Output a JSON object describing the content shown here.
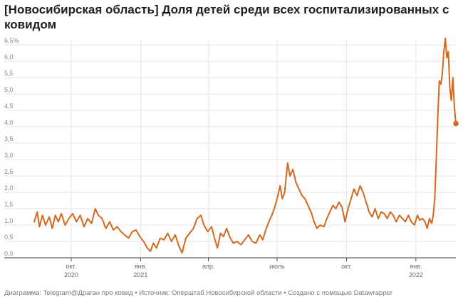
{
  "title": "[Новосибирская область] Доля детей среди всех госпитализированных с ковидом",
  "footer": "Диаграмма: Telegram@Драган про ковид • Источник: Оперштаб Новосибирской области • Создано с помощью Datawrapper",
  "colors": {
    "line": "#d2691e",
    "grid": "#e6e6e6",
    "axis": "#444444"
  },
  "chart_data": {
    "type": "line",
    "x_range": [
      "2020-08-13",
      "2022-02-23"
    ],
    "ylim": [
      0,
      6.5
    ],
    "y_ticks": [
      "0,0",
      "0,5",
      "1,0",
      "1,5",
      "2,0",
      "2,5",
      "3,0",
      "3,5",
      "4,0",
      "4,5",
      "5,0",
      "5,5",
      "6,0",
      "6,5%"
    ],
    "x_ticks": [
      {
        "date": "2020-10-01",
        "label": "окт.",
        "year": "2020"
      },
      {
        "date": "2021-01-01",
        "label": "янв.",
        "year": "2021"
      },
      {
        "date": "2021-04-01",
        "label": "апр.",
        "year": ""
      },
      {
        "date": "2021-07-01",
        "label": "июль",
        "year": ""
      },
      {
        "date": "2021-10-01",
        "label": "окт.",
        "year": ""
      },
      {
        "date": "2022-01-01",
        "label": "янв.",
        "year": "2022"
      }
    ],
    "end_marker": true,
    "points": [
      [
        "2020-08-13",
        1.1
      ],
      [
        "2020-08-17",
        1.4
      ],
      [
        "2020-08-20",
        0.95
      ],
      [
        "2020-08-24",
        1.3
      ],
      [
        "2020-08-28",
        1.0
      ],
      [
        "2020-09-02",
        1.25
      ],
      [
        "2020-09-06",
        0.9
      ],
      [
        "2020-09-10",
        1.3
      ],
      [
        "2020-09-14",
        1.1
      ],
      [
        "2020-09-18",
        1.35
      ],
      [
        "2020-09-23",
        1.0
      ],
      [
        "2020-09-28",
        1.2
      ],
      [
        "2020-10-03",
        1.35
      ],
      [
        "2020-10-08",
        1.1
      ],
      [
        "2020-10-13",
        1.3
      ],
      [
        "2020-10-18",
        0.95
      ],
      [
        "2020-10-23",
        1.2
      ],
      [
        "2020-10-28",
        1.05
      ],
      [
        "2020-11-02",
        1.5
      ],
      [
        "2020-11-06",
        1.3
      ],
      [
        "2020-11-11",
        1.2
      ],
      [
        "2020-11-16",
        0.9
      ],
      [
        "2020-11-21",
        1.1
      ],
      [
        "2020-11-26",
        0.85
      ],
      [
        "2020-12-01",
        0.95
      ],
      [
        "2020-12-06",
        0.8
      ],
      [
        "2020-12-11",
        0.7
      ],
      [
        "2020-12-16",
        0.6
      ],
      [
        "2020-12-21",
        0.8
      ],
      [
        "2020-12-26",
        0.85
      ],
      [
        "2020-12-31",
        0.65
      ],
      [
        "2021-01-05",
        0.5
      ],
      [
        "2021-01-10",
        0.3
      ],
      [
        "2021-01-14",
        0.2
      ],
      [
        "2021-01-18",
        0.45
      ],
      [
        "2021-01-22",
        0.3
      ],
      [
        "2021-01-27",
        0.6
      ],
      [
        "2021-02-01",
        0.55
      ],
      [
        "2021-02-06",
        0.75
      ],
      [
        "2021-02-11",
        0.5
      ],
      [
        "2021-02-16",
        0.7
      ],
      [
        "2021-02-21",
        0.35
      ],
      [
        "2021-02-25",
        0.15
      ],
      [
        "2021-03-02",
        0.6
      ],
      [
        "2021-03-07",
        0.75
      ],
      [
        "2021-03-12",
        0.9
      ],
      [
        "2021-03-17",
        1.2
      ],
      [
        "2021-03-22",
        1.3
      ],
      [
        "2021-03-26",
        1.0
      ],
      [
        "2021-03-31",
        0.8
      ],
      [
        "2021-04-05",
        0.95
      ],
      [
        "2021-04-09",
        0.6
      ],
      [
        "2021-04-13",
        0.3
      ],
      [
        "2021-04-17",
        0.75
      ],
      [
        "2021-04-21",
        0.65
      ],
      [
        "2021-04-25",
        0.9
      ],
      [
        "2021-04-30",
        0.6
      ],
      [
        "2021-05-04",
        0.45
      ],
      [
        "2021-05-09",
        0.5
      ],
      [
        "2021-05-14",
        0.4
      ],
      [
        "2021-05-19",
        0.55
      ],
      [
        "2021-05-24",
        0.7
      ],
      [
        "2021-05-29",
        0.5
      ],
      [
        "2021-06-03",
        0.45
      ],
      [
        "2021-06-08",
        0.7
      ],
      [
        "2021-06-12",
        0.55
      ],
      [
        "2021-06-16",
        0.85
      ],
      [
        "2021-06-20",
        1.1
      ],
      [
        "2021-06-24",
        1.3
      ],
      [
        "2021-06-28",
        1.55
      ],
      [
        "2021-07-02",
        1.9
      ],
      [
        "2021-07-05",
        2.2
      ],
      [
        "2021-07-08",
        1.8
      ],
      [
        "2021-07-11",
        2.0
      ],
      [
        "2021-07-15",
        2.9
      ],
      [
        "2021-07-18",
        2.5
      ],
      [
        "2021-07-22",
        2.7
      ],
      [
        "2021-07-26",
        2.3
      ],
      [
        "2021-07-30",
        2.1
      ],
      [
        "2021-08-03",
        1.9
      ],
      [
        "2021-08-07",
        1.8
      ],
      [
        "2021-08-11",
        1.6
      ],
      [
        "2021-08-15",
        1.4
      ],
      [
        "2021-08-19",
        1.1
      ],
      [
        "2021-08-23",
        0.9
      ],
      [
        "2021-08-27",
        1.0
      ],
      [
        "2021-09-01",
        0.95
      ],
      [
        "2021-09-05",
        1.2
      ],
      [
        "2021-09-09",
        1.4
      ],
      [
        "2021-09-13",
        1.6
      ],
      [
        "2021-09-17",
        1.5
      ],
      [
        "2021-09-21",
        1.7
      ],
      [
        "2021-09-25",
        1.55
      ],
      [
        "2021-09-29",
        1.1
      ],
      [
        "2021-10-03",
        1.5
      ],
      [
        "2021-10-07",
        1.8
      ],
      [
        "2021-10-11",
        2.1
      ],
      [
        "2021-10-15",
        1.9
      ],
      [
        "2021-10-19",
        2.2
      ],
      [
        "2021-10-23",
        2.0
      ],
      [
        "2021-10-27",
        1.7
      ],
      [
        "2021-10-31",
        1.4
      ],
      [
        "2021-11-04",
        1.25
      ],
      [
        "2021-11-08",
        1.5
      ],
      [
        "2021-11-12",
        1.2
      ],
      [
        "2021-11-16",
        1.4
      ],
      [
        "2021-11-20",
        1.35
      ],
      [
        "2021-11-24",
        1.2
      ],
      [
        "2021-11-28",
        1.4
      ],
      [
        "2021-12-02",
        1.3
      ],
      [
        "2021-12-06",
        1.1
      ],
      [
        "2021-12-10",
        1.3
      ],
      [
        "2021-12-14",
        1.2
      ],
      [
        "2021-12-18",
        1.1
      ],
      [
        "2021-12-22",
        1.3
      ],
      [
        "2021-12-26",
        1.1
      ],
      [
        "2021-12-30",
        1.0
      ],
      [
        "2022-01-03",
        1.3
      ],
      [
        "2022-01-06",
        1.15
      ],
      [
        "2022-01-10",
        1.2
      ],
      [
        "2022-01-13",
        1.1
      ],
      [
        "2022-01-16",
        0.9
      ],
      [
        "2022-01-19",
        1.2
      ],
      [
        "2022-01-22",
        1.05
      ],
      [
        "2022-01-24",
        1.3
      ],
      [
        "2022-01-26",
        1.8
      ],
      [
        "2022-01-28",
        3.0
      ],
      [
        "2022-01-30",
        4.3
      ],
      [
        "2022-02-01",
        5.4
      ],
      [
        "2022-02-03",
        5.3
      ],
      [
        "2022-02-05",
        5.6
      ],
      [
        "2022-02-07",
        6.3
      ],
      [
        "2022-02-09",
        6.7
      ],
      [
        "2022-02-11",
        6.1
      ],
      [
        "2022-02-13",
        6.3
      ],
      [
        "2022-02-15",
        5.2
      ],
      [
        "2022-02-17",
        4.8
      ],
      [
        "2022-02-19",
        5.5
      ],
      [
        "2022-02-21",
        4.6
      ],
      [
        "2022-02-23",
        4.1
      ]
    ]
  }
}
